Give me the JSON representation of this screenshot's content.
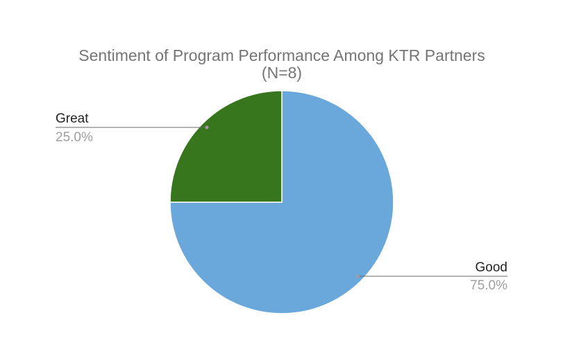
{
  "chart_data": {
    "type": "pie",
    "title": "Sentiment of Program Performance Among KTR Partners",
    "subtitle": "(N=8)",
    "slices": [
      {
        "label": "Good",
        "value": 75.0,
        "percent_label": "75.0%",
        "color": "#6aa8dc"
      },
      {
        "label": "Great",
        "value": 25.0,
        "percent_label": "25.0%",
        "color": "#38761d"
      }
    ]
  }
}
